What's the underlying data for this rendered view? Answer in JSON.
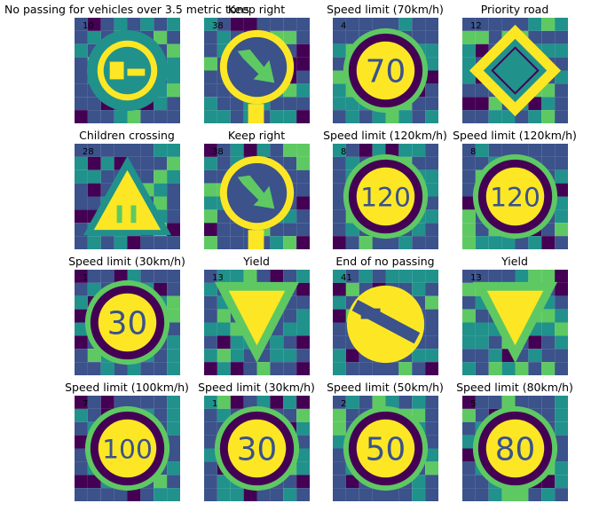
{
  "figure": {
    "panels": [
      {
        "label": "No passing for vehicles over 3.5 metric tons",
        "class_id": "10",
        "sign": "no-passing-trucks"
      },
      {
        "label": "Keep right",
        "class_id": "38",
        "sign": "keep-right"
      },
      {
        "label": "Speed limit (70km/h)",
        "class_id": "4",
        "sign": "speed-70"
      },
      {
        "label": "Priority road",
        "class_id": "12",
        "sign": "priority-road"
      },
      {
        "label": "Children crossing",
        "class_id": "28",
        "sign": "children-crossing"
      },
      {
        "label": "Keep right",
        "class_id": "38",
        "sign": "keep-right"
      },
      {
        "label": "Speed limit (120km/h)",
        "class_id": "8",
        "sign": "speed-120"
      },
      {
        "label": "Speed limit (120km/h)",
        "class_id": "8",
        "sign": "speed-120"
      },
      {
        "label": "Speed limit (30km/h)",
        "class_id": "1",
        "sign": "speed-30"
      },
      {
        "label": "Yield",
        "class_id": "13",
        "sign": "yield"
      },
      {
        "label": "End of no passing",
        "class_id": "41",
        "sign": "end-no-passing"
      },
      {
        "label": "Yield",
        "class_id": "13",
        "sign": "yield"
      },
      {
        "label": "Speed limit (100km/h)",
        "class_id": "7",
        "sign": "speed-100"
      },
      {
        "label": "Speed limit (30km/h)",
        "class_id": "1",
        "sign": "speed-30"
      },
      {
        "label": "Speed limit (50km/h)",
        "class_id": "2",
        "sign": "speed-50"
      },
      {
        "label": "Speed limit (80km/h)",
        "class_id": "5",
        "sign": "speed-80"
      }
    ],
    "colormap": {
      "dark": "#440154",
      "mid_dark": "#3b528b",
      "mid": "#21918c",
      "mid_light": "#5ec962",
      "light": "#fde725"
    }
  }
}
